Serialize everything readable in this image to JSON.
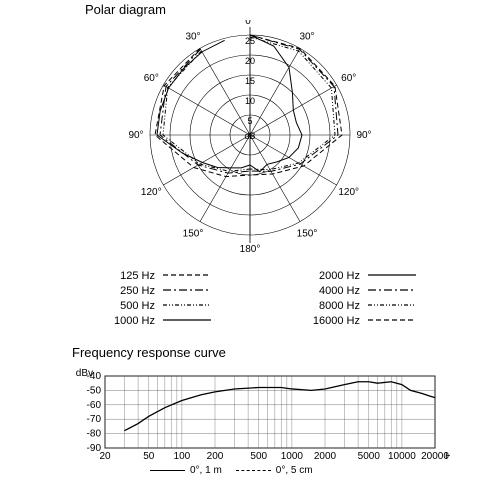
{
  "polar": {
    "title": "Polar diagram",
    "center_label": "dB",
    "angle_labels": [
      "0°",
      "30°",
      "60°",
      "90°",
      "120°",
      "150°",
      "180°"
    ],
    "ring_labels": [
      "5",
      "10",
      "15",
      "20",
      "25"
    ],
    "ring_radii": [
      20,
      40,
      60,
      80,
      100
    ],
    "max_r": 100,
    "colors": {
      "stroke": "#000000",
      "grid": "#000000",
      "bg": "#ffffff"
    },
    "line_width": 1,
    "legend_left": [
      {
        "label": "125 Hz",
        "dash": "5,3"
      },
      {
        "label": "250 Hz",
        "dash": "8,3,2,3"
      },
      {
        "label": "500 Hz",
        "dash": "4,2,1,2,1,2"
      },
      {
        "label": "1000 Hz",
        "dash": ""
      }
    ],
    "legend_right": [
      {
        "label": "2000 Hz",
        "dash": ""
      },
      {
        "label": "4000 Hz",
        "dash": "8,3,2,3"
      },
      {
        "label": "8000 Hz",
        "dash": "4,2,1,2,1,2"
      },
      {
        "label": "16000 Hz",
        "dash": "5,3"
      }
    ],
    "curves": [
      {
        "dash": "5,3",
        "pts": [
          [
            0,
            100,
            1
          ],
          [
            30,
            100,
            1
          ],
          [
            60,
            98,
            1
          ],
          [
            90,
            92,
            1
          ],
          [
            120,
            62,
            1
          ],
          [
            150,
            45,
            1
          ],
          [
            180,
            40,
            1
          ],
          [
            30,
            100,
            -1
          ],
          [
            60,
            99,
            -1
          ],
          [
            90,
            95,
            -1
          ],
          [
            120,
            65,
            -1
          ],
          [
            150,
            48,
            -1
          ],
          [
            180,
            40,
            -1
          ]
        ]
      },
      {
        "dash": "8,3,2,3",
        "pts": [
          [
            0,
            100,
            1
          ],
          [
            30,
            99,
            1
          ],
          [
            60,
            97,
            1
          ],
          [
            90,
            88,
            1
          ],
          [
            120,
            58,
            1
          ],
          [
            150,
            42,
            1
          ],
          [
            180,
            36,
            1
          ],
          [
            30,
            99,
            -1
          ],
          [
            60,
            97,
            -1
          ],
          [
            90,
            90,
            -1
          ],
          [
            120,
            60,
            -1
          ],
          [
            150,
            44,
            -1
          ],
          [
            180,
            36,
            -1
          ]
        ]
      },
      {
        "dash": "",
        "pts": [
          [
            0,
            100,
            1
          ],
          [
            15,
            92,
            1
          ],
          [
            30,
            78,
            1
          ],
          [
            45,
            60,
            1
          ],
          [
            60,
            50,
            1
          ],
          [
            75,
            48,
            1
          ],
          [
            90,
            52,
            1
          ],
          [
            105,
            50,
            1
          ],
          [
            120,
            45,
            1
          ],
          [
            135,
            38,
            1
          ],
          [
            150,
            34,
            1
          ],
          [
            165,
            38,
            1
          ],
          [
            180,
            30,
            1
          ],
          [
            15,
            98,
            -1
          ],
          [
            30,
            96,
            -1
          ],
          [
            45,
            94,
            -1
          ],
          [
            60,
            94,
            -1
          ],
          [
            75,
            93,
            -1
          ],
          [
            90,
            93,
            -1
          ],
          [
            105,
            70,
            -1
          ],
          [
            120,
            55,
            -1
          ],
          [
            135,
            46,
            -1
          ],
          [
            150,
            38,
            -1
          ],
          [
            165,
            34,
            -1
          ],
          [
            180,
            30,
            -1
          ]
        ]
      },
      {
        "dash": "4,2,1,2,1,2",
        "pts": [
          [
            0,
            98,
            1
          ],
          [
            30,
            97,
            1
          ],
          [
            60,
            94,
            1
          ],
          [
            90,
            85,
            1
          ],
          [
            120,
            56,
            1
          ],
          [
            150,
            40,
            1
          ],
          [
            180,
            34,
            1
          ],
          [
            30,
            97,
            -1
          ],
          [
            60,
            95,
            -1
          ],
          [
            90,
            87,
            -1
          ],
          [
            120,
            58,
            -1
          ],
          [
            150,
            42,
            -1
          ],
          [
            180,
            34,
            -1
          ]
        ]
      }
    ]
  },
  "freq": {
    "title": "Frequency response curve",
    "ylabel": "dBv",
    "xlabel": "Hz",
    "ylim": [
      -90,
      -40
    ],
    "ytick_step": 10,
    "yticks": [
      -40,
      -50,
      -60,
      -70,
      -80,
      -90
    ],
    "xlim": [
      20,
      20000
    ],
    "xticks": [
      20,
      50,
      100,
      200,
      500,
      1000,
      2000,
      5000,
      10000,
      20000
    ],
    "grid_color": "#555555",
    "bg": "#ffffff",
    "line_color": "#000000",
    "line_width": 1.3,
    "series": [
      {
        "dash": "",
        "pts": [
          [
            30,
            -78
          ],
          [
            40,
            -73
          ],
          [
            50,
            -68
          ],
          [
            70,
            -62
          ],
          [
            100,
            -57
          ],
          [
            150,
            -53
          ],
          [
            200,
            -51
          ],
          [
            300,
            -49
          ],
          [
            500,
            -48
          ],
          [
            800,
            -48
          ],
          [
            1000,
            -49
          ],
          [
            1500,
            -50
          ],
          [
            2000,
            -49
          ],
          [
            3000,
            -46
          ],
          [
            4000,
            -44
          ],
          [
            5000,
            -44
          ],
          [
            6000,
            -45
          ],
          [
            8000,
            -44
          ],
          [
            10000,
            -46
          ],
          [
            12000,
            -50
          ],
          [
            15000,
            -52
          ],
          [
            18000,
            -54
          ],
          [
            20000,
            -55
          ]
        ]
      }
    ],
    "legend": [
      {
        "label": "0°, 1 m",
        "dash": ""
      },
      {
        "label": "0°, 5 cm",
        "dash": "4,3"
      }
    ]
  }
}
